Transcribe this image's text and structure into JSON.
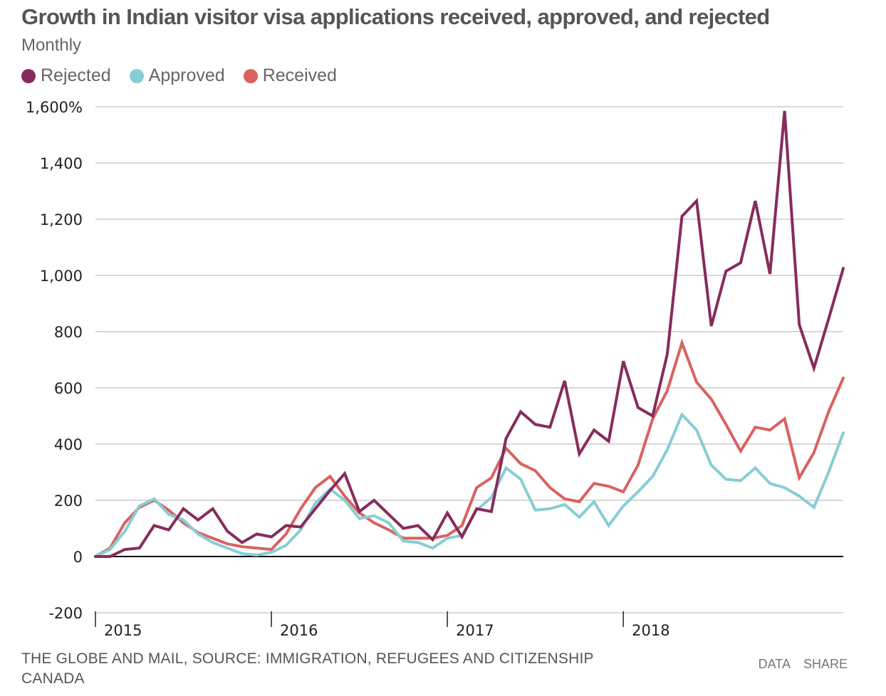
{
  "header": {
    "title": "Growth in Indian visitor visa applications received, approved, and rejected",
    "subtitle": "Monthly"
  },
  "legend": [
    {
      "label": "Rejected",
      "color": "#862c5c"
    },
    {
      "label": "Approved",
      "color": "#88cdd4"
    },
    {
      "label": "Received",
      "color": "#d9625f"
    }
  ],
  "footer": {
    "source": "THE GLOBE AND MAIL, SOURCE: IMMIGRATION, REFUGEES AND CITIZENSHIP CANADA",
    "data_label": "DATA",
    "share_label": "SHARE"
  },
  "chart_data": {
    "type": "line",
    "title": "Growth in Indian visitor visa applications received, approved, and rejected",
    "subtitle": "Monthly",
    "xlabel": "",
    "ylabel": "",
    "ylim": [
      -200,
      1600
    ],
    "yticks": [
      -200,
      0,
      200,
      400,
      600,
      800,
      1000,
      1200,
      1400,
      1600
    ],
    "ytick_labels": [
      "-200",
      "0",
      "200",
      "400",
      "600",
      "800",
      "1,000",
      "1,200",
      "1,400",
      "1,600%"
    ],
    "x_start": "2015-01",
    "x_count": 52,
    "xticks": [
      {
        "index": 0,
        "label": "2015"
      },
      {
        "index": 12,
        "label": "2016"
      },
      {
        "index": 24,
        "label": "2017"
      },
      {
        "index": 36,
        "label": "2018"
      }
    ],
    "grid": true,
    "legend_position": "top-left",
    "series": [
      {
        "name": "Rejected",
        "color": "#862c5c",
        "values": [
          0,
          0,
          25,
          30,
          110,
          95,
          170,
          130,
          170,
          90,
          50,
          80,
          70,
          110,
          105,
          170,
          235,
          295,
          160,
          200,
          150,
          100,
          110,
          60,
          155,
          70,
          170,
          160,
          420,
          515,
          470,
          460,
          625,
          365,
          450,
          410,
          695,
          530,
          500,
          720,
          1210,
          1265,
          820,
          1015,
          1045,
          1265,
          1005,
          1585,
          825,
          670,
          845,
          1025
        ]
      },
      {
        "name": "Approved",
        "color": "#88cdd4",
        "values": [
          0,
          25,
          90,
          180,
          205,
          150,
          130,
          80,
          50,
          30,
          10,
          5,
          15,
          40,
          95,
          190,
          240,
          200,
          135,
          145,
          120,
          55,
          50,
          30,
          65,
          75,
          165,
          210,
          315,
          275,
          165,
          170,
          185,
          140,
          195,
          110,
          180,
          230,
          285,
          380,
          505,
          450,
          325,
          275,
          270,
          315,
          260,
          245,
          215,
          175,
          300,
          440
        ]
      },
      {
        "name": "Received",
        "color": "#d9625f",
        "values": [
          0,
          30,
          120,
          175,
          200,
          165,
          120,
          85,
          65,
          45,
          35,
          30,
          25,
          80,
          170,
          245,
          285,
          215,
          155,
          120,
          95,
          65,
          65,
          65,
          75,
          110,
          245,
          280,
          385,
          330,
          305,
          245,
          205,
          195,
          260,
          250,
          230,
          325,
          490,
          590,
          760,
          620,
          560,
          470,
          375,
          460,
          450,
          490,
          280,
          370,
          515,
          635
        ]
      }
    ]
  }
}
